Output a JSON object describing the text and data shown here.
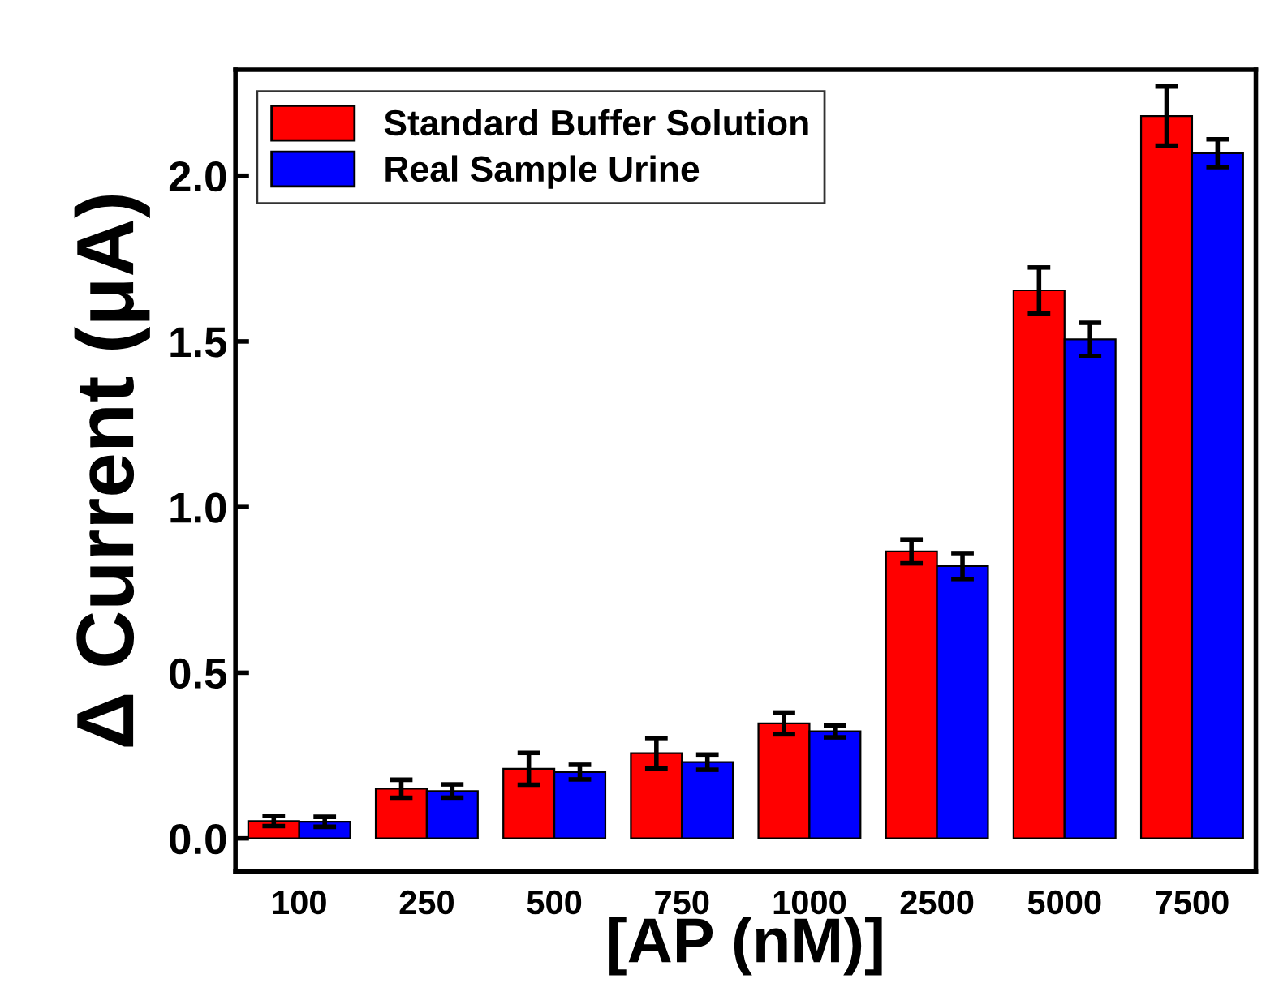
{
  "chart_data": {
    "type": "bar",
    "xlabel": "[AP (nM)]",
    "ylabel": "Δ Current (μA)",
    "categories": [
      "100",
      "250",
      "500",
      "750",
      "1000",
      "2500",
      "5000",
      "7500"
    ],
    "series": [
      {
        "name": "Standard Buffer Solution",
        "color": "#ff0000",
        "values": [
          0.052,
          0.15,
          0.21,
          0.257,
          0.347,
          0.866,
          1.654,
          2.18
        ],
        "errors": [
          0.015,
          0.027,
          0.048,
          0.046,
          0.033,
          0.036,
          0.069,
          0.089
        ]
      },
      {
        "name": "Real Sample Urine",
        "color": "#0000ff",
        "values": [
          0.05,
          0.143,
          0.2,
          0.23,
          0.323,
          0.822,
          1.506,
          2.068
        ],
        "errors": [
          0.015,
          0.02,
          0.022,
          0.023,
          0.018,
          0.039,
          0.05,
          0.042
        ]
      }
    ],
    "ylim": [
      -0.1,
      2.32
    ],
    "yticks": [
      {
        "value": 0,
        "label": "0.0"
      },
      0.5,
      {
        "value": 1,
        "label": "1.0"
      },
      1.5,
      {
        "value": 2,
        "label": "2.0"
      }
    ],
    "legend": "top left",
    "grid": false
  }
}
